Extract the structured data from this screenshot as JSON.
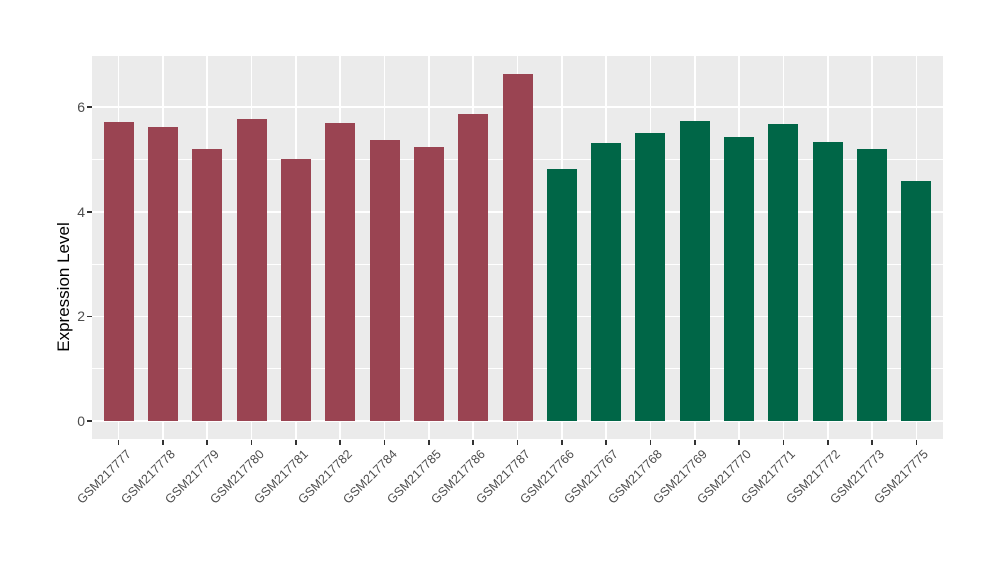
{
  "figure": {
    "background": "#FFFFFF",
    "panel_background": "#EBEBEB",
    "gridline_color": "#FFFFFF",
    "tick_mark_color": "#333333",
    "tick_label_color": "#4D4D4D",
    "axis_title_color": "#000000"
  },
  "chart_data": {
    "type": "bar",
    "title": "",
    "xlabel": "",
    "ylabel": "Expression Level",
    "ylim": [
      0,
      7
    ],
    "yticks": [
      0,
      2,
      4,
      6
    ],
    "minor_gridlines": [
      1,
      3,
      5
    ],
    "grid": true,
    "legend_position": "none",
    "group_colors": {
      "group1": "#9A4452",
      "group2": "#006647"
    },
    "bars": [
      {
        "label": "GSM217777",
        "value": 5.72,
        "group": "group1"
      },
      {
        "label": "GSM217778",
        "value": 5.63,
        "group": "group1"
      },
      {
        "label": "GSM217779",
        "value": 5.21,
        "group": "group1"
      },
      {
        "label": "GSM217780",
        "value": 5.77,
        "group": "group1"
      },
      {
        "label": "GSM217781",
        "value": 5.01,
        "group": "group1"
      },
      {
        "label": "GSM217782",
        "value": 5.7,
        "group": "group1"
      },
      {
        "label": "GSM217784",
        "value": 5.37,
        "group": "group1"
      },
      {
        "label": "GSM217785",
        "value": 5.23,
        "group": "group1"
      },
      {
        "label": "GSM217786",
        "value": 5.87,
        "group": "group1"
      },
      {
        "label": "GSM217787",
        "value": 6.63,
        "group": "group1"
      },
      {
        "label": "GSM217766",
        "value": 4.82,
        "group": "group2"
      },
      {
        "label": "GSM217767",
        "value": 5.31,
        "group": "group2"
      },
      {
        "label": "GSM217768",
        "value": 5.5,
        "group": "group2"
      },
      {
        "label": "GSM217769",
        "value": 5.73,
        "group": "group2"
      },
      {
        "label": "GSM217770",
        "value": 5.43,
        "group": "group2"
      },
      {
        "label": "GSM217771",
        "value": 5.68,
        "group": "group2"
      },
      {
        "label": "GSM217772",
        "value": 5.34,
        "group": "group2"
      },
      {
        "label": "GSM217773",
        "value": 5.21,
        "group": "group2"
      },
      {
        "label": "GSM217775",
        "value": 4.58,
        "group": "group2"
      }
    ]
  }
}
